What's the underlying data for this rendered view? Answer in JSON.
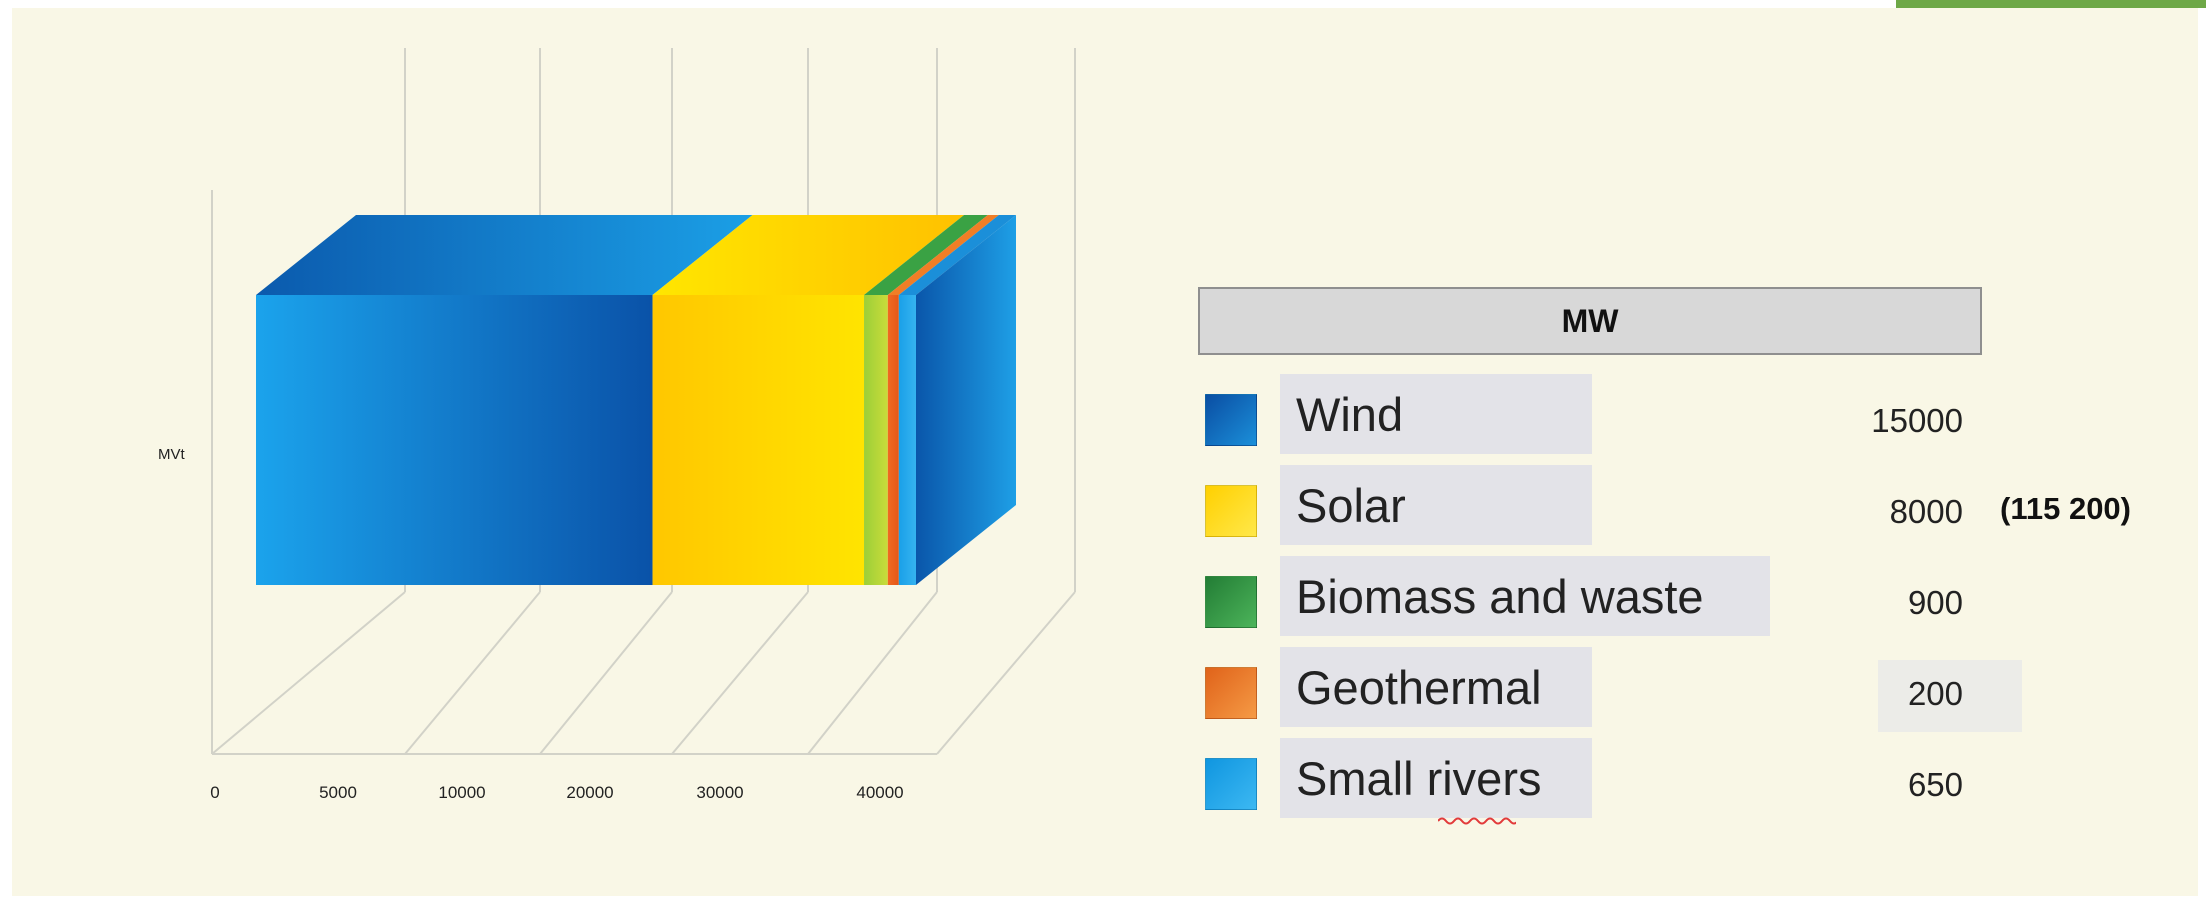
{
  "chart_data": {
    "type": "bar",
    "orientation": "horizontal-stacked-3d",
    "ylabel": "MVt",
    "xticks": [
      "0",
      "5000",
      "10000",
      "20000",
      "30000",
      "40000"
    ],
    "series": [
      {
        "name": "Wind",
        "value": 15000,
        "color": "#0a63b8"
      },
      {
        "name": "Solar",
        "value": 8000,
        "color": "#ffcc00"
      },
      {
        "name": "Biomass and waste",
        "value": 900,
        "color": "#36a04a"
      },
      {
        "name": "Geothermal",
        "value": 200,
        "color": "#f07e26"
      },
      {
        "name": "Small rivers",
        "value": 650,
        "color": "#1aa0e8"
      }
    ]
  },
  "legend": {
    "header": "MW",
    "total_note": "(115 200)",
    "rows": [
      {
        "label": "Wind",
        "value": "15000"
      },
      {
        "label": "Solar",
        "value": "8000"
      },
      {
        "label": "Biomass and waste",
        "value": "900"
      },
      {
        "label": "Geothermal",
        "value": "200"
      },
      {
        "label": "Small rivers",
        "value": "650"
      }
    ]
  }
}
